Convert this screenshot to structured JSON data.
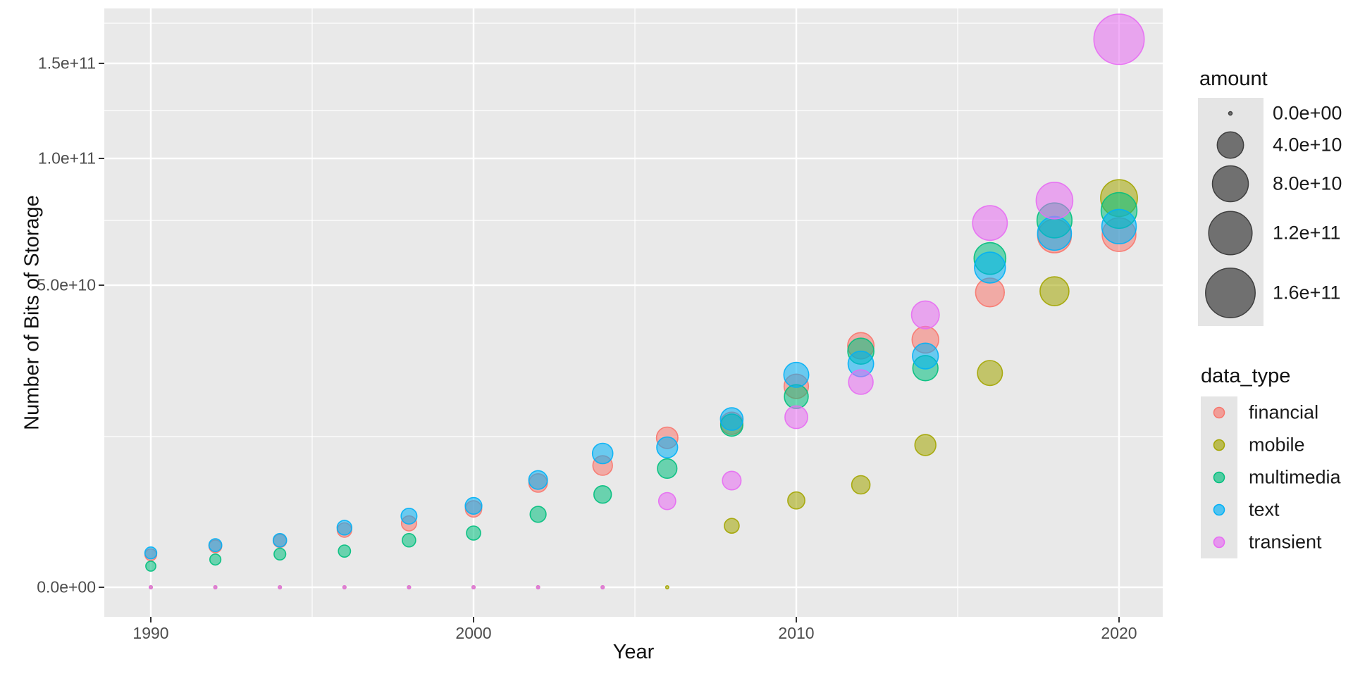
{
  "figure": {
    "background": "#ffffff",
    "panel_bg": "#e9e9e9",
    "grid_color": "#ffffff",
    "legend_key_bg": "#e5e5e5",
    "size_symbol_fill": "#707070",
    "size_symbol_stroke": "#3f3f3f"
  },
  "axes": {
    "x": {
      "title": "Year",
      "ticks": [
        {
          "label": "1990",
          "value": 1990
        },
        {
          "label": "2000",
          "value": 2000
        },
        {
          "label": "2010",
          "value": 2010
        },
        {
          "label": "2020",
          "value": 2020
        }
      ],
      "minor_values": [
        1995,
        2005,
        2015
      ]
    },
    "y": {
      "title": "Number of Bits of Storage",
      "ticks": [
        {
          "label": "0.0e+00",
          "value": 0
        },
        {
          "label": "5.0e+10",
          "value": 50000000000
        },
        {
          "label": "1.0e+11",
          "value": 100000000000
        },
        {
          "label": "1.5e+11",
          "value": 150000000000
        }
      ],
      "minor_values": [
        25000000000,
        75000000000,
        125000000000,
        175000000000
      ]
    }
  },
  "legends": {
    "size": {
      "title": "amount",
      "entries": [
        {
          "label": "0.0e+00",
          "value": 0
        },
        {
          "label": "4.0e+10",
          "value": 40000000000
        },
        {
          "label": "8.0e+10",
          "value": 80000000000
        },
        {
          "label": "1.2e+11",
          "value": 120000000000
        },
        {
          "label": "1.6e+11",
          "value": 160000000000
        }
      ]
    },
    "color": {
      "title": "data_type",
      "entries": [
        {
          "label": "financial",
          "color": "#F8766D"
        },
        {
          "label": "mobile",
          "color": "#A3A500"
        },
        {
          "label": "multimedia",
          "color": "#00BF7D"
        },
        {
          "label": "text",
          "color": "#00B0F6"
        },
        {
          "label": "transient",
          "color": "#E76BF3"
        }
      ]
    }
  },
  "chart_data": {
    "type": "scatter",
    "subtype": "bubble",
    "title": "",
    "xlabel": "Year",
    "ylabel": "Number of Bits of Storage",
    "x": [
      1990,
      1992,
      1994,
      1996,
      1998,
      2000,
      2002,
      2004,
      2006,
      2008,
      2010,
      2012,
      2014,
      2016,
      2018,
      2020
    ],
    "xlim": [
      1988.5,
      2021.4
    ],
    "ylim": [
      0,
      175000000000
    ],
    "y_scale_note": "nonlinear axis: pixel gaps between 0, 5e10, 1e11, 1.5e11 compress toward top",
    "size_encodes": "amount (same as y value); area ~ value, max legend 1.6e+11",
    "grid": true,
    "legend_position": "right",
    "series": [
      {
        "name": "financial",
        "color": "#F8766D",
        "values": [
          5400000000,
          6800000000,
          7700000000,
          9500000000,
          10600000000,
          13000000000,
          17300000000,
          20200000000,
          24800000000,
          27200000000,
          33300000000,
          40000000000,
          41000000000,
          48800000000,
          69000000000,
          69500000000
        ]
      },
      {
        "name": "mobile",
        "color": "#A3A500",
        "values": [
          0,
          0,
          0,
          0,
          0,
          0,
          0,
          0,
          0,
          10200000000,
          14400000000,
          17000000000,
          23600000000,
          35500000000,
          49000000000,
          84000000000
        ]
      },
      {
        "name": "multimedia",
        "color": "#00BF7D",
        "values": [
          3500000000,
          4600000000,
          5500000000,
          6000000000,
          7800000000,
          9000000000,
          12100000000,
          15400000000,
          19700000000,
          26900000000,
          31600000000,
          39100000000,
          36300000000,
          60300000000,
          75000000000,
          79000000000
        ]
      },
      {
        "name": "text",
        "color": "#00B0F6",
        "values": [
          5700000000,
          7000000000,
          7800000000,
          9900000000,
          11800000000,
          13500000000,
          17800000000,
          22200000000,
          23200000000,
          27900000000,
          35200000000,
          37000000000,
          38300000000,
          56800000000,
          70000000000,
          72600000000
        ]
      },
      {
        "name": "transient",
        "color": "#E76BF3",
        "values": [
          0,
          0,
          0,
          0,
          0,
          0,
          0,
          0,
          14300000000,
          17700000000,
          28200000000,
          34000000000,
          45100000000,
          74000000000,
          83000000000,
          165000000000
        ]
      }
    ]
  }
}
